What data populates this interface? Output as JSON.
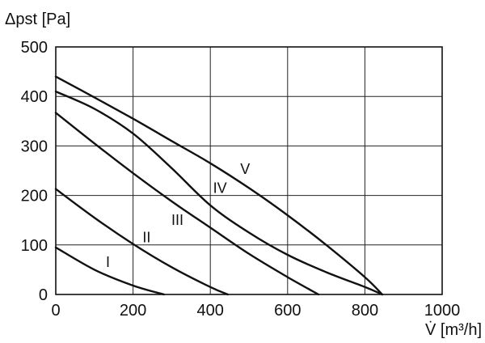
{
  "chart_data": {
    "type": "line",
    "title": "",
    "ylabel": "Δpst [Pa]",
    "xlabel": "V̇ [m³/h]",
    "xlim": [
      0,
      1000
    ],
    "ylim": [
      0,
      500
    ],
    "x_ticks": [
      0,
      200,
      400,
      600,
      800,
      1000
    ],
    "y_ticks": [
      0,
      100,
      200,
      300,
      400,
      500
    ],
    "grid": true,
    "series": [
      {
        "name": "I",
        "x": [
          0,
          100,
          200,
          280
        ],
        "y": [
          95,
          50,
          18,
          0
        ]
      },
      {
        "name": "II",
        "x": [
          0,
          100,
          200,
          300,
          400,
          445
        ],
        "y": [
          213,
          155,
          102,
          55,
          15,
          0
        ]
      },
      {
        "name": "III",
        "x": [
          0,
          100,
          200,
          300,
          400,
          500,
          600,
          680
        ],
        "y": [
          367,
          305,
          245,
          188,
          135,
          82,
          35,
          0
        ]
      },
      {
        "name": "IV",
        "x": [
          0,
          100,
          200,
          300,
          400,
          500,
          600,
          700,
          800,
          845
        ],
        "y": [
          410,
          375,
          325,
          255,
          180,
          125,
          80,
          45,
          15,
          0
        ]
      },
      {
        "name": "V",
        "x": [
          0,
          100,
          200,
          300,
          400,
          500,
          600,
          700,
          800,
          845
        ],
        "y": [
          440,
          398,
          355,
          310,
          265,
          215,
          160,
          100,
          35,
          0
        ]
      }
    ],
    "annotations": [
      {
        "text": "I",
        "x": 135,
        "y": 65
      },
      {
        "text": "II",
        "x": 235,
        "y": 115
      },
      {
        "text": "III",
        "x": 315,
        "y": 150
      },
      {
        "text": "IV",
        "x": 425,
        "y": 215
      },
      {
        "text": "V",
        "x": 490,
        "y": 253
      }
    ]
  }
}
